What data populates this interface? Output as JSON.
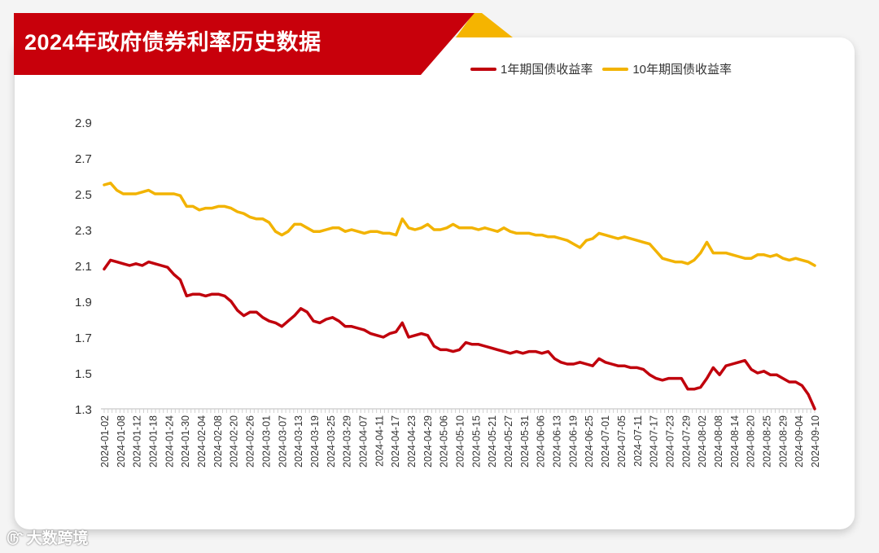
{
  "header": {
    "title": "2024年政府债券利率历史数据"
  },
  "colors": {
    "banner": "#c8000b",
    "banner_gold": "#f5b400",
    "series_1y": "#c0000c",
    "series_10y": "#f2b300"
  },
  "legend": [
    {
      "label": "1年期国债收益率",
      "color": "#c0000c"
    },
    {
      "label": "10年期国债收益率",
      "color": "#f2b300"
    }
  ],
  "watermark": {
    "text": "大数跨境",
    "icon": "dashuju-logo-icon"
  },
  "chart_data": {
    "type": "line",
    "title": "2024年政府债券利率历史数据",
    "xlabel": "",
    "ylabel": "",
    "ylim": [
      1.3,
      2.9
    ],
    "yticks": [
      "2.9",
      "2.7",
      "2.5",
      "2.3",
      "2.1",
      "1.9",
      "1.7",
      "1.5",
      "1.3"
    ],
    "xticks": [
      "2024-01-02",
      "2024-01-08",
      "2024-01-12",
      "2024-01-18",
      "2024-01-24",
      "2024-01-30",
      "2024-02-04",
      "2024-02-08",
      "2024-02-20",
      "2024-02-26",
      "2024-03-01",
      "2024-03-07",
      "2024-03-13",
      "2024-03-19",
      "2024-03-25",
      "2024-03-29",
      "2024-04-07",
      "2024-04-11",
      "2024-04-17",
      "2024-04-23",
      "2024-04-29",
      "2024-05-06",
      "2024-05-10",
      "2024-05-15",
      "2024-05-21",
      "2024-05-27",
      "2024-05-31",
      "2024-06-06",
      "2024-06-13",
      "2024-06-19",
      "2024-06-25",
      "2024-07-01",
      "2024-07-05",
      "2024-07-11",
      "2024-07-17",
      "2024-07-23",
      "2024-07-29",
      "2024-08-02",
      "2024-08-08",
      "2024-08-14",
      "2024-08-20",
      "2024-08-25",
      "2024-08-29",
      "2024-09-04",
      "2024-09-10"
    ],
    "series": [
      {
        "name": "1年期国债收益率",
        "values": [
          2.08,
          2.13,
          2.12,
          2.11,
          2.1,
          2.11,
          2.1,
          2.12,
          2.11,
          2.1,
          2.09,
          2.05,
          2.02,
          1.93,
          1.94,
          1.94,
          1.93,
          1.94,
          1.94,
          1.93,
          1.9,
          1.85,
          1.82,
          1.84,
          1.84,
          1.81,
          1.79,
          1.78,
          1.76,
          1.79,
          1.82,
          1.86,
          1.84,
          1.79,
          1.78,
          1.8,
          1.81,
          1.79,
          1.76,
          1.76,
          1.75,
          1.74,
          1.72,
          1.71,
          1.7,
          1.72,
          1.73,
          1.78,
          1.7,
          1.71,
          1.72,
          1.71,
          1.65,
          1.63,
          1.63,
          1.62,
          1.63,
          1.67,
          1.66,
          1.66,
          1.65,
          1.64,
          1.63,
          1.62,
          1.61,
          1.62,
          1.61,
          1.62,
          1.62,
          1.61,
          1.62,
          1.58,
          1.56,
          1.55,
          1.55,
          1.56,
          1.55,
          1.54,
          1.58,
          1.56,
          1.55,
          1.54,
          1.54,
          1.53,
          1.53,
          1.52,
          1.49,
          1.47,
          1.46,
          1.47,
          1.47,
          1.47,
          1.41,
          1.41,
          1.42,
          1.47,
          1.53,
          1.49,
          1.54,
          1.55,
          1.56,
          1.57,
          1.52,
          1.5,
          1.51,
          1.49,
          1.49,
          1.47,
          1.45,
          1.45,
          1.43,
          1.38,
          1.3
        ]
      },
      {
        "name": "10年期国债收益率",
        "values": [
          2.55,
          2.56,
          2.52,
          2.5,
          2.5,
          2.5,
          2.51,
          2.52,
          2.5,
          2.5,
          2.5,
          2.5,
          2.49,
          2.43,
          2.43,
          2.41,
          2.42,
          2.42,
          2.43,
          2.43,
          2.42,
          2.4,
          2.39,
          2.37,
          2.36,
          2.36,
          2.34,
          2.29,
          2.27,
          2.29,
          2.33,
          2.33,
          2.31,
          2.29,
          2.29,
          2.3,
          2.31,
          2.31,
          2.29,
          2.3,
          2.29,
          2.28,
          2.29,
          2.29,
          2.28,
          2.28,
          2.27,
          2.36,
          2.31,
          2.3,
          2.31,
          2.33,
          2.3,
          2.3,
          2.31,
          2.33,
          2.31,
          2.31,
          2.31,
          2.3,
          2.31,
          2.3,
          2.29,
          2.31,
          2.29,
          2.28,
          2.28,
          2.28,
          2.27,
          2.27,
          2.26,
          2.26,
          2.25,
          2.24,
          2.22,
          2.2,
          2.24,
          2.25,
          2.28,
          2.27,
          2.26,
          2.25,
          2.26,
          2.25,
          2.24,
          2.23,
          2.22,
          2.18,
          2.14,
          2.13,
          2.12,
          2.12,
          2.11,
          2.13,
          2.17,
          2.23,
          2.17,
          2.17,
          2.17,
          2.16,
          2.15,
          2.14,
          2.14,
          2.16,
          2.16,
          2.15,
          2.16,
          2.14,
          2.13,
          2.14,
          2.13,
          2.12,
          2.1
        ]
      }
    ]
  }
}
